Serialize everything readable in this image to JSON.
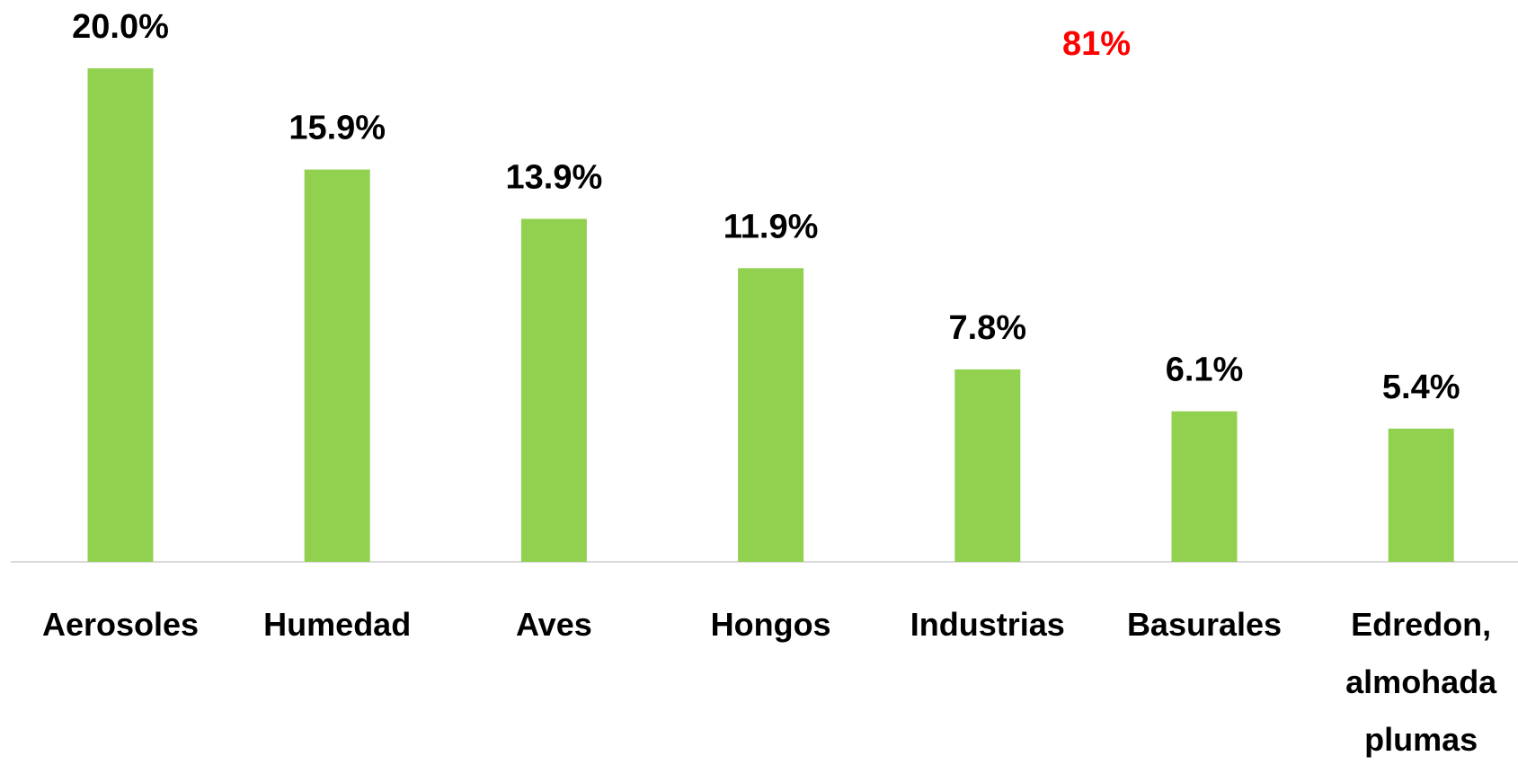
{
  "chart_data": {
    "type": "bar",
    "categories": [
      "Aerosoles",
      "Humedad",
      "Aves",
      "Hongos",
      "Industrias",
      "Basurales",
      "Edredon, almohada plumas"
    ],
    "values": [
      20.0,
      15.9,
      13.9,
      11.9,
      7.8,
      6.1,
      5.4
    ],
    "value_labels": [
      "20.0%",
      "15.9%",
      "13.9%",
      "11.9%",
      "7.8%",
      "6.1%",
      "5.4%"
    ],
    "color": "#92d050",
    "annotations": [
      {
        "text": "81%",
        "color": "#ff0000"
      }
    ]
  }
}
